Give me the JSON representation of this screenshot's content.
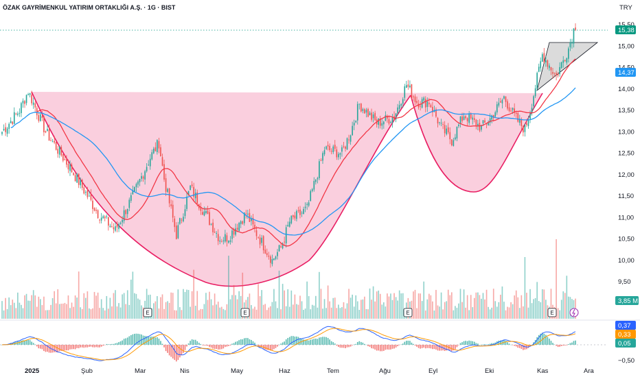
{
  "header": {
    "title": "ÖZAK GAYRİMENKUL YATIRIM ORTAKLIĞI A.Ş. · 1G · BIST",
    "currency": "TRY"
  },
  "colors": {
    "up": "#26a69a",
    "down": "#ef5350",
    "ma_red": "#f23645",
    "ma_blue": "#2196f3",
    "cup_fill": "#f8bbd0",
    "cup_stroke": "#e91e63",
    "macd_line": "#2962ff",
    "signal_line": "#ff9800",
    "last_price": "#089981",
    "ma_badge": "#2196f3",
    "volume_badge": "#26a69a",
    "macd_badge": "#2962ff",
    "signal_badge": "#ff9800",
    "hist_badge": "#26a69a"
  },
  "chart_data": {
    "type": "candlestick",
    "price_axis": {
      "ticks": [
        "15,50",
        "15,00",
        "14,50",
        "14,00",
        "13,50",
        "13,00",
        "12,50",
        "12,00",
        "11,50",
        "11,00",
        "10,50",
        "10,00",
        "9,50"
      ],
      "range": [
        9.2,
        15.6
      ]
    },
    "macd_axis": {
      "ticks": [
        "−0,50"
      ],
      "range": [
        -0.65,
        0.45
      ]
    },
    "time_axis": {
      "ticks": [
        "2025",
        "Şub",
        "Mar",
        "Nis",
        "May",
        "Haz",
        "Tem",
        "Ağu",
        "Eyl",
        "Eki",
        "Kas",
        "Ara"
      ]
    },
    "badges": {
      "last_price": "15,38",
      "ma_value": "14,37",
      "volume": "3,85 M",
      "macd": "0,37",
      "signal": "0,33",
      "histogram": "0,05"
    },
    "earnings_markers": [
      "E",
      "E",
      "E",
      "E"
    ],
    "close_anchors": [
      [
        0,
        13.0
      ],
      [
        10,
        13.5
      ],
      [
        15,
        13.95
      ],
      [
        25,
        13.0
      ],
      [
        40,
        12.1
      ],
      [
        55,
        11.1
      ],
      [
        65,
        10.7
      ],
      [
        75,
        11.5
      ],
      [
        85,
        12.4
      ],
      [
        90,
        12.75
      ],
      [
        93,
        11.9
      ],
      [
        100,
        10.6
      ],
      [
        108,
        11.7
      ],
      [
        115,
        11.2
      ],
      [
        125,
        10.5
      ],
      [
        130,
        10.55
      ],
      [
        140,
        11.1
      ],
      [
        145,
        10.7
      ],
      [
        155,
        10.0
      ],
      [
        160,
        10.3
      ],
      [
        165,
        10.9
      ],
      [
        175,
        11.2
      ],
      [
        180,
        11.9
      ],
      [
        185,
        12.6
      ],
      [
        195,
        12.5
      ],
      [
        200,
        13.0
      ],
      [
        205,
        13.65
      ],
      [
        215,
        13.2
      ],
      [
        225,
        13.35
      ],
      [
        232,
        14.1
      ],
      [
        238,
        13.7
      ],
      [
        245,
        13.7
      ],
      [
        252,
        13.1
      ],
      [
        258,
        12.8
      ],
      [
        265,
        13.4
      ],
      [
        275,
        13.1
      ],
      [
        280,
        13.3
      ],
      [
        288,
        13.8
      ],
      [
        295,
        13.3
      ],
      [
        300,
        13.05
      ],
      [
        303,
        13.5
      ],
      [
        310,
        14.8
      ],
      [
        318,
        14.3
      ],
      [
        325,
        14.95
      ],
      [
        328,
        15.38
      ]
    ]
  }
}
